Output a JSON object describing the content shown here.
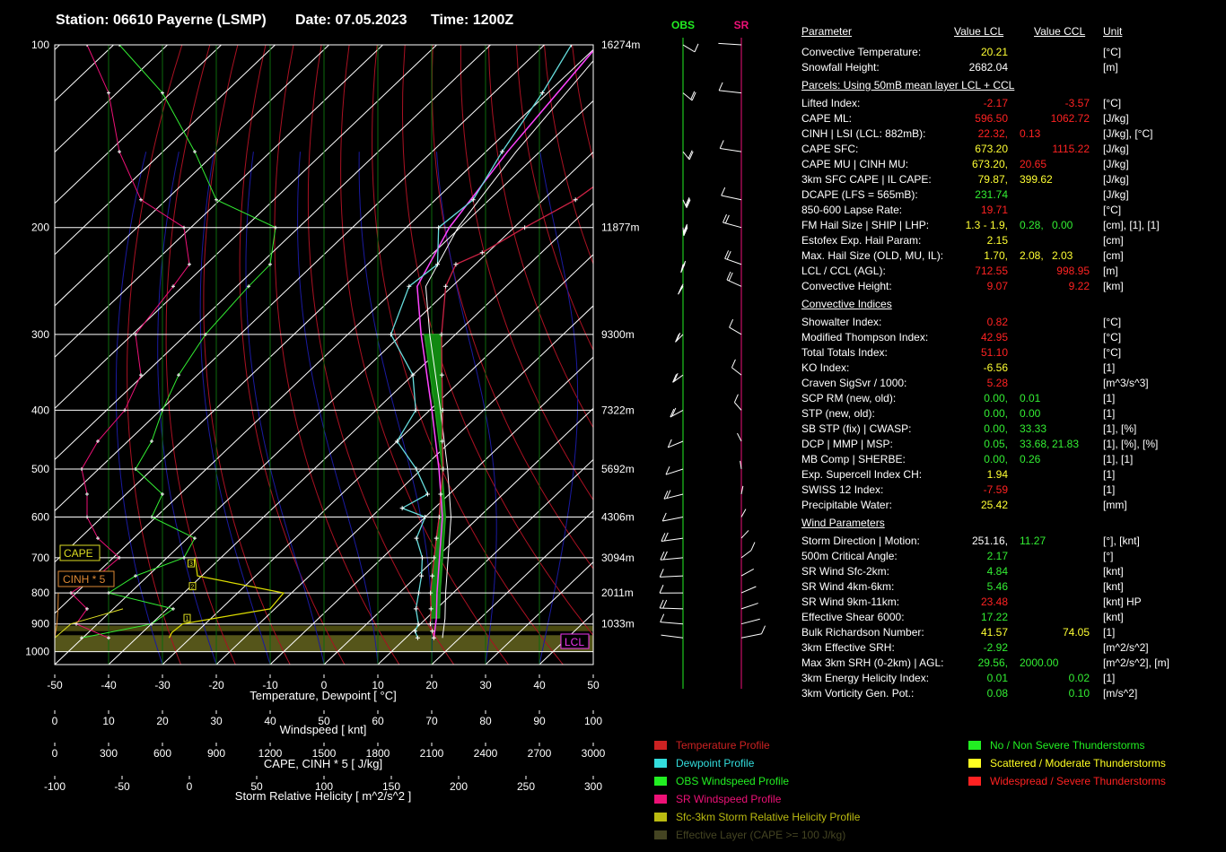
{
  "header": {
    "station": "Station: 06610 Payerne (LSMP)",
    "date": "Date: 07.05.2023",
    "time": "Time: 1200Z"
  },
  "colors": {
    "temperature": "#cc2244",
    "dewpoint": "#66dddd",
    "obs_wind": "#33ee33",
    "sr_wind": "#ee1177",
    "srh": "#dddd00",
    "cape_fill": "#118811",
    "parcel": "#ff44ff",
    "green_index": "#33ee33",
    "yellow_index": "#ffff33",
    "red_index": "#ff2222",
    "white_index": "#ffffff"
  },
  "chart_data": {
    "type": "line",
    "axes": {
      "temperature_label": "Temperature, Dewpoint [ °C]",
      "temperature_ticks": [
        "-50",
        "-40",
        "-30",
        "-20",
        "-10",
        "0",
        "10",
        "20",
        "30",
        "40",
        "50"
      ],
      "windspeed_label": "Windspeed [ knt]",
      "windspeed_ticks": [
        "0",
        "10",
        "20",
        "30",
        "40",
        "50",
        "60",
        "70",
        "80",
        "90",
        "100"
      ],
      "cape_label": "CAPE, CINH * 5 [ J/kg]",
      "cape_ticks": [
        "0",
        "300",
        "600",
        "900",
        "1200",
        "1500",
        "1800",
        "2100",
        "2400",
        "2700",
        "3000"
      ],
      "srh_label": "Storm Relative Helicity [ m^2/s^2 ]",
      "srh_ticks": [
        "-100",
        "-50",
        "0",
        "50",
        "100",
        "150",
        "200",
        "250",
        "300"
      ],
      "pressure_levels": [
        100,
        200,
        300,
        400,
        500,
        600,
        700,
        800,
        900,
        1000
      ],
      "pressure_labels": [
        "100",
        "200",
        "300",
        "400",
        "500",
        "600",
        "700",
        "800",
        "900",
        "1000"
      ],
      "height_levels": [
        100,
        200,
        300,
        400,
        500,
        600,
        700,
        800,
        900
      ],
      "height_labels": [
        "16274m",
        "11877m",
        "9300m",
        "7322m",
        "5692m",
        "4306m",
        "3094m",
        "2011m",
        "1033m"
      ],
      "temp_range": [
        -50,
        50
      ],
      "pressure_range": [
        100,
        1050
      ],
      "y_scale": "log"
    },
    "temperature_profile": [
      [
        949,
        15.2
      ],
      [
        925,
        13.6
      ],
      [
        900,
        11.8
      ],
      [
        850,
        9.0
      ],
      [
        800,
        5.8
      ],
      [
        750,
        2.8
      ],
      [
        700,
        -0.4
      ],
      [
        650,
        -3.8
      ],
      [
        600,
        -7.4
      ],
      [
        550,
        -11.6
      ],
      [
        500,
        -16.0
      ],
      [
        450,
        -21.6
      ],
      [
        400,
        -27.6
      ],
      [
        350,
        -34.6
      ],
      [
        300,
        -42.6
      ],
      [
        250,
        -51.2
      ],
      [
        230,
        -53.6
      ],
      [
        220,
        -51.0
      ],
      [
        200,
        -48.0
      ],
      [
        180,
        -44.0
      ],
      [
        150,
        -41.0
      ],
      [
        120,
        -38.0
      ],
      [
        100,
        -36.0
      ]
    ],
    "dewpoint_profile": [
      [
        949,
        12.2
      ],
      [
        925,
        10.4
      ],
      [
        900,
        9.6
      ],
      [
        850,
        6.2
      ],
      [
        800,
        3.6
      ],
      [
        750,
        0.8
      ],
      [
        700,
        -2.6
      ],
      [
        650,
        -7.5
      ],
      [
        600,
        -10.0
      ],
      [
        580,
        -16.0
      ],
      [
        550,
        -14.0
      ],
      [
        500,
        -21.0
      ],
      [
        450,
        -30.0
      ],
      [
        400,
        -32.6
      ],
      [
        350,
        -40.0
      ],
      [
        300,
        -52.0
      ],
      [
        250,
        -58.0
      ],
      [
        230,
        -57.0
      ],
      [
        200,
        -64.0
      ],
      [
        180,
        -63.0
      ],
      [
        150,
        -67.0
      ],
      [
        120,
        -71.0
      ],
      [
        100,
        -75.0
      ]
    ],
    "parcel_profile": [
      [
        949,
        15.2
      ],
      [
        882,
        11.9
      ],
      [
        800,
        7.0
      ],
      [
        700,
        0.6
      ],
      [
        600,
        -6.8
      ],
      [
        500,
        -16.8
      ],
      [
        400,
        -29.6
      ],
      [
        300,
        -46.4
      ],
      [
        250,
        -56.5
      ],
      [
        200,
        -62.0
      ],
      [
        150,
        -66.0
      ],
      [
        100,
        -70.0
      ]
    ],
    "obs_wind_speed": [
      [
        949,
        5
      ],
      [
        900,
        18
      ],
      [
        850,
        22
      ],
      [
        800,
        10
      ],
      [
        750,
        15
      ],
      [
        700,
        24
      ],
      [
        650,
        26
      ],
      [
        600,
        18
      ],
      [
        550,
        20
      ],
      [
        500,
        15
      ],
      [
        450,
        18
      ],
      [
        400,
        20
      ],
      [
        350,
        23
      ],
      [
        300,
        28
      ],
      [
        250,
        36
      ],
      [
        230,
        40
      ],
      [
        200,
        41
      ],
      [
        180,
        30
      ],
      [
        150,
        26
      ],
      [
        120,
        20
      ],
      [
        100,
        12
      ]
    ],
    "sr_wind_speed": [
      [
        949,
        10
      ],
      [
        900,
        4
      ],
      [
        850,
        6
      ],
      [
        800,
        3
      ],
      [
        750,
        8
      ],
      [
        700,
        12
      ],
      [
        650,
        8
      ],
      [
        600,
        6
      ],
      [
        550,
        6
      ],
      [
        500,
        5
      ],
      [
        450,
        8
      ],
      [
        400,
        13
      ],
      [
        350,
        16
      ],
      [
        300,
        15
      ],
      [
        250,
        22
      ],
      [
        230,
        25
      ],
      [
        200,
        24
      ],
      [
        180,
        16
      ],
      [
        150,
        12
      ],
      [
        120,
        10
      ],
      [
        100,
        6
      ]
    ],
    "cape_profile": [
      [
        949,
        0
      ],
      [
        900,
        90
      ],
      [
        850,
        380
      ]
    ],
    "cinh_profile": [
      [
        949,
        0
      ],
      [
        900,
        12
      ],
      [
        850,
        18
      ],
      [
        800,
        20
      ]
    ],
    "srh_profile": [
      [
        949,
        -15
      ],
      [
        930,
        -13
      ],
      [
        900,
        -5
      ],
      [
        880,
        20
      ],
      [
        850,
        60
      ],
      [
        800,
        70
      ],
      [
        750,
        6
      ],
      [
        720,
        5
      ],
      [
        700,
        4
      ]
    ],
    "srh_markers": [
      "1",
      "2",
      "3"
    ],
    "wind_columns": [
      "OBS",
      "SR"
    ],
    "markers": {
      "lcl": "LCL",
      "cape": "CAPE",
      "cinh": "CINH * 5"
    }
  },
  "table": {
    "headers": [
      "Parameter",
      "Value LCL",
      "Value CCL",
      "Unit"
    ],
    "rows": [
      {
        "p": "Convective Temperature:",
        "v1": "20.21",
        "c1": "yellow_index",
        "v2": "",
        "c2": "",
        "u": "[°C]"
      },
      {
        "p": "Snowfall Height:",
        "v1": "2682.04",
        "c1": "white_index",
        "v2": "",
        "c2": "",
        "u": "[m]"
      },
      {
        "section": "Parcels: Using 50mB mean layer LCL + CCL"
      },
      {
        "p": "Lifted Index:",
        "v1": "-2.17",
        "c1": "red_index",
        "v2": "-3.57",
        "c2": "red_index",
        "u": "[°C]"
      },
      {
        "p": "CAPE ML:",
        "v1": "596.50",
        "c1": "red_index",
        "v2": "1062.72",
        "c2": "red_index",
        "u": "[J/kg]"
      },
      {
        "p": "CINH | LSI (LCL: 882mB):",
        "v1": "22.32,",
        "c1": "red_index",
        "v2": "0.13",
        "c2": "red_index",
        "v2x": true,
        "u": "[J/kg], [°C]"
      },
      {
        "p": "CAPE SFC:",
        "v1": "673.20",
        "c1": "yellow_index",
        "v2": "1115.22",
        "c2": "red_index",
        "u": "[J/kg]"
      },
      {
        "p": "CAPE MU | CINH MU:",
        "v1": "673.20,",
        "c1": "yellow_index",
        "v2": "20.65",
        "c2": "red_index",
        "v2x": true,
        "u": "[J/kg]"
      },
      {
        "p": "3km SFC CAPE | IL CAPE:",
        "v1": "79.87,",
        "c1": "yellow_index",
        "v2": "399.62",
        "c2": "yellow_index",
        "v2x": true,
        "u": "[J/kg]"
      },
      {
        "p": "DCAPE (LFS = 565mB):",
        "v1": "231.74",
        "c1": "green_index",
        "v2": "",
        "c2": "",
        "u": "[J/kg]"
      },
      {
        "p": "850-600 Lapse Rate:",
        "v1": "19.71",
        "c1": "red_index",
        "v2": "",
        "c2": "",
        "u": "[°C]"
      },
      {
        "p": "FM Hail Size | SHIP | LHP:",
        "v1": "1.3 - 1.9,",
        "c1": "yellow_index",
        "v2": "0.28,",
        "c2": "green_index",
        "v3": "0.00",
        "c3": "green_index",
        "u": "[cm], [1], [1]"
      },
      {
        "p": "Estofex Exp. Hail Param:",
        "v1": "2.15",
        "c1": "yellow_index",
        "v2": "",
        "c2": "",
        "u": "[cm]"
      },
      {
        "p": "Max. Hail Size (OLD, MU, IL):",
        "v1": "1.70,",
        "c1": "yellow_index",
        "v2": "2.08,",
        "c2": "yellow_index",
        "v3": "2.03",
        "c3": "yellow_index",
        "u": "[cm]"
      },
      {
        "p": "LCL / CCL (AGL):",
        "v1": "712.55",
        "c1": "red_index",
        "v2": "998.95",
        "c2": "red_index",
        "u": "[m]"
      },
      {
        "p": "Convective Height:",
        "v1": "9.07",
        "c1": "red_index",
        "v2": "9.22",
        "c2": "red_index",
        "u": "[km]"
      },
      {
        "section": "Convective Indices"
      },
      {
        "p": "Showalter Index:",
        "v1": "0.82",
        "c1": "red_index",
        "v2": "",
        "c2": "",
        "u": "[°C]"
      },
      {
        "p": "Modified Thompson Index:",
        "v1": "42.95",
        "c1": "red_index",
        "v2": "",
        "c2": "",
        "u": "[°C]"
      },
      {
        "p": "Total Totals Index:",
        "v1": "51.10",
        "c1": "red_index",
        "v2": "",
        "c2": "",
        "u": "[°C]"
      },
      {
        "p": "KO Index:",
        "v1": "-6.56",
        "c1": "yellow_index",
        "v2": "",
        "c2": "",
        "u": "[1]"
      },
      {
        "p": "Craven SigSvr / 1000:",
        "v1": "5.28",
        "c1": "red_index",
        "v2": "",
        "c2": "",
        "u": "[m^3/s^3]"
      },
      {
        "p": "SCP RM (new, old):",
        "v1": "0.00,",
        "c1": "green_index",
        "v2": "0.01",
        "c2": "green_index",
        "v2x": true,
        "u": "[1]"
      },
      {
        "p": "STP (new, old):",
        "v1": "0.00,",
        "c1": "green_index",
        "v2": "0.00",
        "c2": "green_index",
        "v2x": true,
        "u": "[1]"
      },
      {
        "p": "SB STP (fix) | CWASP:",
        "v1": "0.00,",
        "c1": "green_index",
        "v2": "33.33",
        "c2": "green_index",
        "v2x": true,
        "u": "[1], [%]"
      },
      {
        "p": "DCP | MMP | MSP:",
        "v1": "0.05,",
        "c1": "green_index",
        "v2": "33.68,",
        "c2": "green_index",
        "v3": "21.83",
        "c3": "green_index",
        "u": "[1], [%], [%]"
      },
      {
        "p": "MB Comp | SHERBE:",
        "v1": "0.00,",
        "c1": "green_index",
        "v2": "0.26",
        "c2": "green_index",
        "v2x": true,
        "u": "[1], [1]"
      },
      {
        "p": "Exp. Supercell Index CH:",
        "v1": "1.94",
        "c1": "yellow_index",
        "v2": "",
        "c2": "",
        "u": "[1]"
      },
      {
        "p": "SWISS 12 Index:",
        "v1": "-7.59",
        "c1": "red_index",
        "v2": "",
        "c2": "",
        "u": "[1]"
      },
      {
        "p": "Precipitable Water:",
        "v1": "25.42",
        "c1": "yellow_index",
        "v2": "",
        "c2": "",
        "u": "[mm]"
      },
      {
        "section": "Wind Parameters"
      },
      {
        "p": "Storm Direction | Motion:",
        "v1": "251.16,",
        "c1": "white_index",
        "v2": "11.27",
        "c2": "green_index",
        "v2x": true,
        "u": "[°], [knt]"
      },
      {
        "p": "500m Critical Angle:",
        "v1": "2.17",
        "c1": "green_index",
        "v2": "",
        "c2": "",
        "u": "[°]"
      },
      {
        "p": "SR Wind Sfc-2km:",
        "v1": "4.84",
        "c1": "green_index",
        "v2": "",
        "c2": "",
        "u": "[knt]"
      },
      {
        "p": "SR Wind 4km-6km:",
        "v1": "5.46",
        "c1": "green_index",
        "v2": "",
        "c2": "",
        "u": "[knt]"
      },
      {
        "p": "SR Wind 9km-11km:",
        "v1": "23.48",
        "c1": "red_index",
        "v2": "",
        "c2": "",
        "u": "[knt] HP"
      },
      {
        "p": "Effective Shear 6000:",
        "v1": "17.22",
        "c1": "green_index",
        "v2": "",
        "c2": "",
        "u": "[knt]"
      },
      {
        "p": "Bulk Richardson Number:",
        "v1": "41.57",
        "c1": "yellow_index",
        "v2": "74.05",
        "c2": "yellow_index",
        "u": "[1]"
      },
      {
        "p": "3km Effective SRH:",
        "v1": "-2.92",
        "c1": "green_index",
        "v2": "",
        "c2": "",
        "u": "[m^2/s^2]"
      },
      {
        "p": "Max 3km SRH (0-2km) | AGL:",
        "v1": "29.56,",
        "c1": "green_index",
        "v2": "2000.00",
        "c2": "green_index",
        "v2x": true,
        "u": "[m^2/s^2], [m]"
      },
      {
        "p": "3km Energy Helicity Index:",
        "v1": "0.01",
        "c1": "green_index",
        "v2": "0.02",
        "c2": "green_index",
        "u": "[1]"
      },
      {
        "p": "3km Vorticity Gen. Pot.:",
        "v1": "0.08",
        "c1": "green_index",
        "v2": "0.10",
        "c2": "green_index",
        "u": "[m/s^2]"
      }
    ]
  },
  "legend_left": [
    {
      "label": "Temperature Profile",
      "color": "#cc2222"
    },
    {
      "label": "Dewpoint Profile",
      "color": "#33dddd"
    },
    {
      "label": "OBS Windspeed Profile",
      "color": "#22ee22"
    },
    {
      "label": "SR Windspeed Profile",
      "color": "#ee1177"
    },
    {
      "label": "Sfc-3km Storm Relative Helicity Profile",
      "color": "#bbbb11"
    },
    {
      "label": "Effective Layer (CAPE >= 100 J/kg)",
      "color": "#444422"
    }
  ],
  "legend_right": [
    {
      "label": "No / Non Severe Thunderstorms",
      "color": "#22ee22"
    },
    {
      "label": "Scattered / Moderate Thunderstorms",
      "color": "#ffff22"
    },
    {
      "label": "Widespread / Severe Thunderstorms",
      "color": "#ff2222"
    }
  ]
}
